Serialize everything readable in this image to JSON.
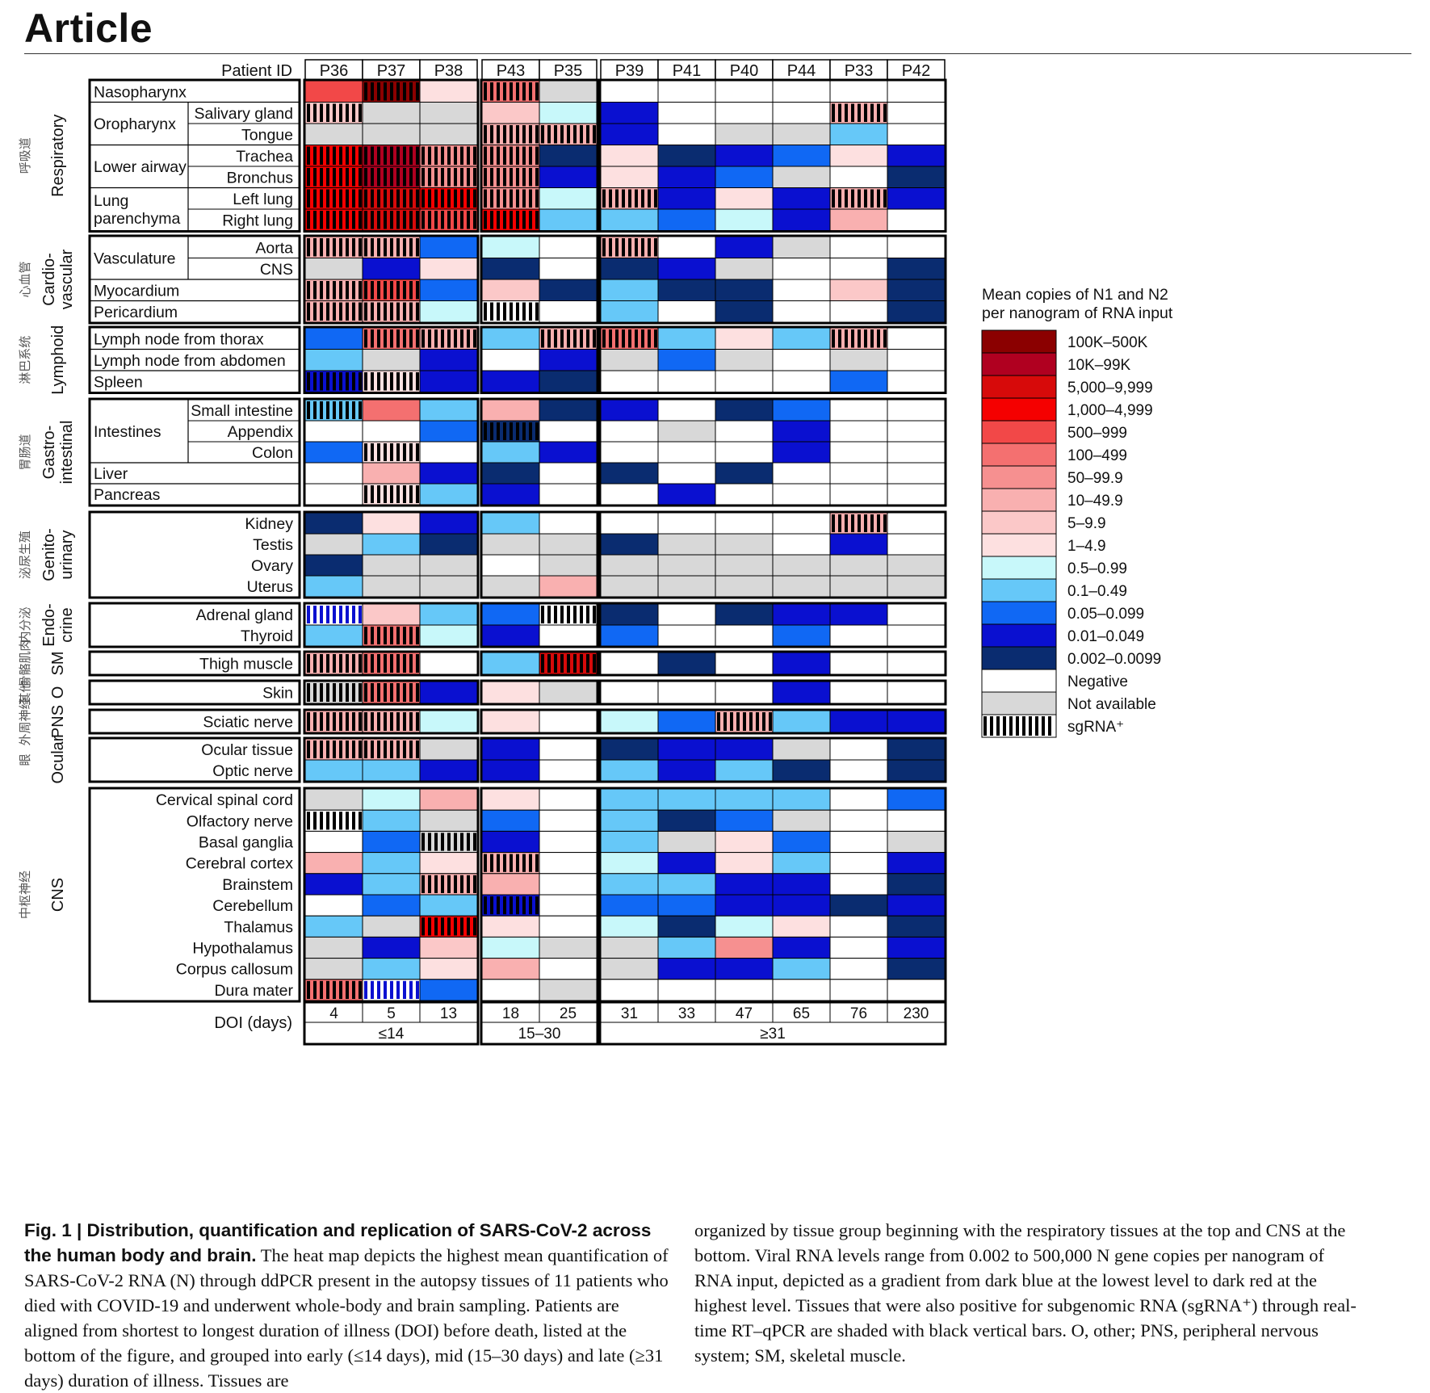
{
  "header": {
    "title": "Article"
  },
  "heatmap": {
    "patient_id_label": "Patient ID",
    "patients": [
      "P36",
      "P37",
      "P38",
      "P43",
      "P35",
      "P39",
      "P41",
      "P40",
      "P44",
      "P33",
      "P42"
    ],
    "column_groups": [
      [
        0,
        1,
        2
      ],
      [
        3,
        4
      ],
      [
        5,
        6,
        7,
        8,
        9,
        10
      ]
    ],
    "doi_label": "DOI (days)",
    "doi": [
      "4",
      "5",
      "13",
      "18",
      "25",
      "31",
      "33",
      "47",
      "65",
      "76",
      "230"
    ],
    "doi_groups": [
      "≤14",
      "15–30",
      "≥31"
    ],
    "categories": [
      {
        "label": "Respiratory",
        "cn": "呼吸道",
        "rows": 7
      },
      {
        "label": "Cardio-\nvascular",
        "cn": "心血管",
        "rows": 4
      },
      {
        "label": "Lymphoid",
        "cn": "淋巴系统",
        "rows": 3
      },
      {
        "label": "Gastro-\nintestinal",
        "cn": "胃肠道",
        "rows": 5
      },
      {
        "label": "Genito-\nurinary",
        "cn": "泌尿生殖",
        "rows": 4
      },
      {
        "label": "Endo-\ncrine",
        "cn": "内分泌",
        "rows": 2
      },
      {
        "label": "SM",
        "cn": "骨骼肌肉",
        "rows": 1
      },
      {
        "label": "O",
        "cn": "其他",
        "rows": 1
      },
      {
        "label": "PNS",
        "cn": "外周神经",
        "rows": 1
      },
      {
        "label": "Ocular",
        "cn": "眼",
        "rows": 2
      },
      {
        "label": "CNS",
        "cn": "中枢神经",
        "rows": 10
      }
    ],
    "row_groups_labels": [
      {
        "cat": 0,
        "start": 0,
        "span": 1,
        "label": "Nasopharynx"
      },
      {
        "cat": 0,
        "start": 1,
        "span": 2,
        "label": "Oropharynx"
      },
      {
        "cat": 0,
        "start": 3,
        "span": 2,
        "label": "Lower airway"
      },
      {
        "cat": 0,
        "start": 5,
        "span": 2,
        "label": "Lung\nparenchyma"
      },
      {
        "cat": 1,
        "start": 0,
        "span": 2,
        "label": "Vasculature"
      },
      {
        "cat": 1,
        "start": 2,
        "span": 1,
        "label": "Myocardium"
      },
      {
        "cat": 1,
        "start": 3,
        "span": 1,
        "label": "Pericardium"
      },
      {
        "cat": 2,
        "start": 0,
        "span": 1,
        "label": "Lymph node from thorax"
      },
      {
        "cat": 2,
        "start": 1,
        "span": 1,
        "label": "Lymph node from abdomen"
      },
      {
        "cat": 2,
        "start": 2,
        "span": 1,
        "label": "Spleen"
      },
      {
        "cat": 3,
        "start": 0,
        "span": 3,
        "label": "Intestines"
      },
      {
        "cat": 3,
        "start": 3,
        "span": 1,
        "label": "Liver"
      },
      {
        "cat": 3,
        "start": 4,
        "span": 1,
        "label": "Pancreas"
      }
    ],
    "tissue_rows": [
      [
        "",
        "Salivary gland",
        "Tongue",
        "Trachea",
        "Bronchus",
        "Left lung",
        "Right lung"
      ],
      [
        "Aorta",
        "CNS",
        "",
        ""
      ],
      [
        "",
        "",
        ""
      ],
      [
        "Small intestine",
        "Appendix",
        "Colon",
        "",
        ""
      ],
      [
        "Kidney",
        "Testis",
        "Ovary",
        "Uterus"
      ],
      [
        "Adrenal gland",
        "Thyroid"
      ],
      [
        "Thigh muscle"
      ],
      [
        "Skin"
      ],
      [
        "Sciatic nerve"
      ],
      [
        "Ocular tissue",
        "Optic nerve"
      ],
      [
        "Cervical spinal cord",
        "Olfactory nerve",
        "Basal ganglia",
        "Cerebral cortex",
        "Brainstem",
        "Cerebellum",
        "Thalamus",
        "Hypothalamus",
        "Corpus callosum",
        "Dura mater"
      ]
    ],
    "cells": [
      [
        "e",
        "a",
        "j",
        "f",
        "n",
        "-",
        "-",
        "-",
        "-",
        "-",
        "-"
      ],
      [
        "i",
        "n",
        "n",
        "i",
        "k",
        "o",
        "-",
        "-",
        "-",
        "h",
        "-"
      ],
      [
        "n",
        "n",
        "n",
        "h",
        "h",
        "o",
        "-",
        "n",
        "n",
        "l",
        "-"
      ],
      [
        "d",
        "b",
        "g",
        "g",
        "p",
        "j",
        "p",
        "o",
        "m",
        "j",
        "o"
      ],
      [
        "d",
        "b",
        "g",
        "g",
        "o",
        "j",
        "o",
        "m",
        "n",
        "-",
        "p"
      ],
      [
        "d",
        "c",
        "d",
        "g",
        "k",
        "h",
        "o",
        "j",
        "o",
        "h",
        "o"
      ],
      [
        "d",
        "c",
        "e",
        "d",
        "l",
        "l",
        "m",
        "k",
        "o",
        "h",
        "-"
      ],
      [
        "h",
        "h",
        "m",
        "k",
        "-",
        "h",
        "-",
        "o",
        "n",
        "-",
        "-"
      ],
      [
        "n",
        "o",
        "j",
        "p",
        "-",
        "p",
        "o",
        "n",
        "-",
        "-",
        "p"
      ],
      [
        "h",
        "e",
        "m",
        "i",
        "p",
        "l",
        "p",
        "p",
        "-",
        "i",
        "p"
      ],
      [
        "h",
        "h",
        "k",
        "t",
        "-",
        "l",
        "-",
        "p",
        "-",
        "-",
        "p"
      ],
      [
        "m",
        "f",
        "h",
        "l",
        "h",
        "f",
        "l",
        "j",
        "l",
        "h",
        "-"
      ],
      [
        "l",
        "n",
        "o",
        "-",
        "o",
        "n",
        "m",
        "n",
        "-",
        "n",
        "-"
      ],
      [
        "o",
        "j",
        "o",
        "o",
        "p",
        "-",
        "-",
        "-",
        "-",
        "m",
        "-"
      ],
      [
        "l",
        "f",
        "l",
        "h",
        "p",
        "o",
        "-",
        "p",
        "m",
        "-",
        "-"
      ],
      [
        "-",
        "-",
        "m",
        "p",
        "-",
        "-",
        "n",
        "-",
        "o",
        "-",
        "-"
      ],
      [
        "m",
        "j",
        "-",
        "l",
        "o",
        "-",
        "-",
        "-",
        "o",
        "-",
        "-"
      ],
      [
        "-",
        "h",
        "o",
        "p",
        "-",
        "p",
        "-",
        "p",
        "-",
        "-",
        "-"
      ],
      [
        "-",
        "j",
        "l",
        "o",
        "-",
        "-",
        "o",
        "-",
        "-",
        "-",
        "-"
      ],
      [
        "p",
        "j",
        "o",
        "l",
        "-",
        "-",
        "-",
        "-",
        "-",
        "h",
        "-"
      ],
      [
        "n",
        "l",
        "p",
        "n",
        "n",
        "p",
        "n",
        "n",
        "-",
        "o",
        "-"
      ],
      [
        "p",
        "n",
        "n",
        "-",
        "n",
        "n",
        "n",
        "n",
        "n",
        "n",
        "n"
      ],
      [
        "l",
        "n",
        "n",
        "n",
        "h",
        "n",
        "n",
        "n",
        "n",
        "n",
        "n"
      ],
      [
        "s",
        "i",
        "l",
        "m",
        "-",
        "p",
        "-",
        "p",
        "o",
        "o",
        "-"
      ],
      [
        "l",
        "f",
        "k",
        "o",
        "-",
        "m",
        "-",
        "-",
        "m",
        "-",
        "-"
      ],
      [
        "h",
        "f",
        "-",
        "l",
        "c",
        "-",
        "p",
        "-",
        "o",
        "-",
        "-"
      ],
      [
        "n",
        "f",
        "o",
        "j",
        "n",
        "-",
        "-",
        "-",
        "o",
        "-",
        "-"
      ],
      [
        "h",
        "h",
        "k",
        "j",
        "-",
        "k",
        "m",
        "h",
        "l",
        "o",
        "o"
      ],
      [
        "h",
        "h",
        "n",
        "o",
        "-",
        "p",
        "o",
        "o",
        "n",
        "-",
        "p"
      ],
      [
        "l",
        "l",
        "o",
        "o",
        "-",
        "l",
        "o",
        "l",
        "p",
        "-",
        "p"
      ],
      [
        "n",
        "k",
        "h",
        "j",
        "-",
        "l",
        "l",
        "l",
        "l",
        "-",
        "m"
      ],
      [
        "-",
        "l",
        "n",
        "m",
        "-",
        "l",
        "p",
        "m",
        "n",
        "-",
        "-"
      ],
      [
        "-",
        "m",
        "n",
        "o",
        "-",
        "l",
        "n",
        "j",
        "m",
        "-",
        "n"
      ],
      [
        "h",
        "l",
        "j",
        "h",
        "-",
        "k",
        "o",
        "j",
        "l",
        "-",
        "o"
      ],
      [
        "o",
        "l",
        "h",
        "h",
        "-",
        "l",
        "l",
        "o",
        "o",
        "-",
        "p"
      ],
      [
        "-",
        "m",
        "l",
        "o",
        "-",
        "m",
        "m",
        "o",
        "o",
        "p",
        "o"
      ],
      [
        "l",
        "n",
        "d",
        "j",
        "-",
        "k",
        "p",
        "k",
        "j",
        "-",
        "p"
      ],
      [
        "n",
        "o",
        "i",
        "k",
        "n",
        "n",
        "l",
        "g",
        "o",
        "-",
        "o"
      ],
      [
        "n",
        "l",
        "j",
        "h",
        "-",
        "n",
        "o",
        "o",
        "l",
        "-",
        "p"
      ],
      [
        "f",
        "t",
        "m",
        "-",
        "n",
        "-",
        "-",
        "-",
        "-",
        "-",
        "-"
      ]
    ],
    "hatch_cells": [
      [
        1,
        0
      ],
      [
        3,
        0
      ],
      [
        4,
        0
      ],
      [
        5,
        0
      ],
      [
        6,
        0
      ],
      [
        7,
        0
      ],
      [
        9,
        0
      ],
      [
        10,
        0
      ],
      [
        13,
        0
      ],
      [
        14,
        0
      ],
      [
        25,
        0
      ],
      [
        26,
        0
      ],
      [
        27,
        0
      ],
      [
        28,
        0
      ],
      [
        31,
        0
      ],
      [
        39,
        0
      ],
      [
        0,
        1
      ],
      [
        3,
        1
      ],
      [
        4,
        1
      ],
      [
        5,
        1
      ],
      [
        6,
        1
      ],
      [
        7,
        1
      ],
      [
        9,
        1
      ],
      [
        10,
        1
      ],
      [
        11,
        1
      ],
      [
        13,
        1
      ],
      [
        13,
        1
      ],
      [
        16,
        1
      ],
      [
        18,
        1
      ],
      [
        24,
        1
      ],
      [
        25,
        1
      ],
      [
        26,
        1
      ],
      [
        27,
        1
      ],
      [
        28,
        1
      ],
      [
        3,
        2
      ],
      [
        4,
        2
      ],
      [
        5,
        2
      ],
      [
        6,
        2
      ],
      [
        11,
        2
      ],
      [
        32,
        2
      ],
      [
        34,
        2
      ],
      [
        36,
        2
      ],
      [
        0,
        3
      ],
      [
        2,
        3
      ],
      [
        3,
        3
      ],
      [
        4,
        3
      ],
      [
        5,
        3
      ],
      [
        6,
        3
      ],
      [
        10,
        3
      ],
      [
        15,
        3
      ],
      [
        33,
        3
      ],
      [
        35,
        3
      ],
      [
        2,
        4
      ],
      [
        11,
        4
      ],
      [
        23,
        4
      ],
      [
        25,
        4
      ],
      [
        5,
        5
      ],
      [
        7,
        5
      ],
      [
        11,
        5
      ],
      [
        27,
        7
      ],
      [
        1,
        9
      ],
      [
        11,
        9
      ],
      [
        19,
        9
      ],
      [
        5,
        9
      ]
    ],
    "hatch_light": [
      [
        10,
        3
      ]
    ],
    "hatch_blue": [
      [
        23,
        0
      ],
      [
        39,
        1
      ]
    ]
  },
  "legend": {
    "title_1": "Mean copies of N1 and N2",
    "title_2": "per nanogram of RNA input",
    "items": [
      {
        "key": "a",
        "label": "100K–500K",
        "color": "#8b0000"
      },
      {
        "key": "b",
        "label": "10K–99K",
        "color": "#b00020"
      },
      {
        "key": "c",
        "label": "5,000–9,999",
        "color": "#d70a0a"
      },
      {
        "key": "d",
        "label": "1,000–4,999",
        "color": "#f50000"
      },
      {
        "key": "e",
        "label": "500–999",
        "color": "#f24848"
      },
      {
        "key": "f",
        "label": "100–499",
        "color": "#f47070"
      },
      {
        "key": "g",
        "label": "50–99.9",
        "color": "#f69090"
      },
      {
        "key": "h",
        "label": "10–49.9",
        "color": "#f9b0b0"
      },
      {
        "key": "i",
        "label": "5–9.9",
        "color": "#fbc8c8"
      },
      {
        "key": "j",
        "label": "1–4.9",
        "color": "#fde0e0"
      },
      {
        "key": "k",
        "label": "0.5–0.99",
        "color": "#c8f8fa"
      },
      {
        "key": "l",
        "label": "0.1–0.49",
        "color": "#66c8f8"
      },
      {
        "key": "m",
        "label": "0.05–0.099",
        "color": "#1068f4"
      },
      {
        "key": "o",
        "label": "0.01–0.049",
        "color": "#0a10d0"
      },
      {
        "key": "p",
        "label": "0.002–0.0099",
        "color": "#0a2c70"
      },
      {
        "key": "-",
        "label": "Negative",
        "color": "#ffffff"
      },
      {
        "key": "n",
        "label": "Not available",
        "color": "#d8d8d8"
      },
      {
        "key": "sg",
        "label": "sgRNA⁺",
        "color": "hatch"
      }
    ]
  },
  "caption": {
    "fig": "Fig. 1 | Distribution, quantification and replication of SARS-CoV-2 across the human body and brain.",
    "left": "The heat map depicts the highest mean quantification of SARS-CoV-2 RNA (N) through ddPCR present in the autopsy tissues of 11 patients who died with COVID-19 and underwent whole-body and brain sampling. Patients are aligned from shortest to longest duration of illness (DOI) before death, listed at the bottom of the figure, and grouped into early (≤14 days), mid (15–30 days) and late (≥31 days) duration of illness. Tissues are",
    "right": "organized by tissue group beginning with the respiratory tissues at the top and CNS at the bottom. Viral RNA levels range from 0.002 to 500,000 N gene copies per nanogram of RNA input, depicted as a gradient from dark blue at the lowest level to dark red at the highest level. Tissues that were also positive for subgenomic RNA (sgRNA⁺) through real-time RT–qPCR are shaded with black vertical bars. O, other; PNS, peripheral nervous system; SM, skeletal muscle."
  }
}
